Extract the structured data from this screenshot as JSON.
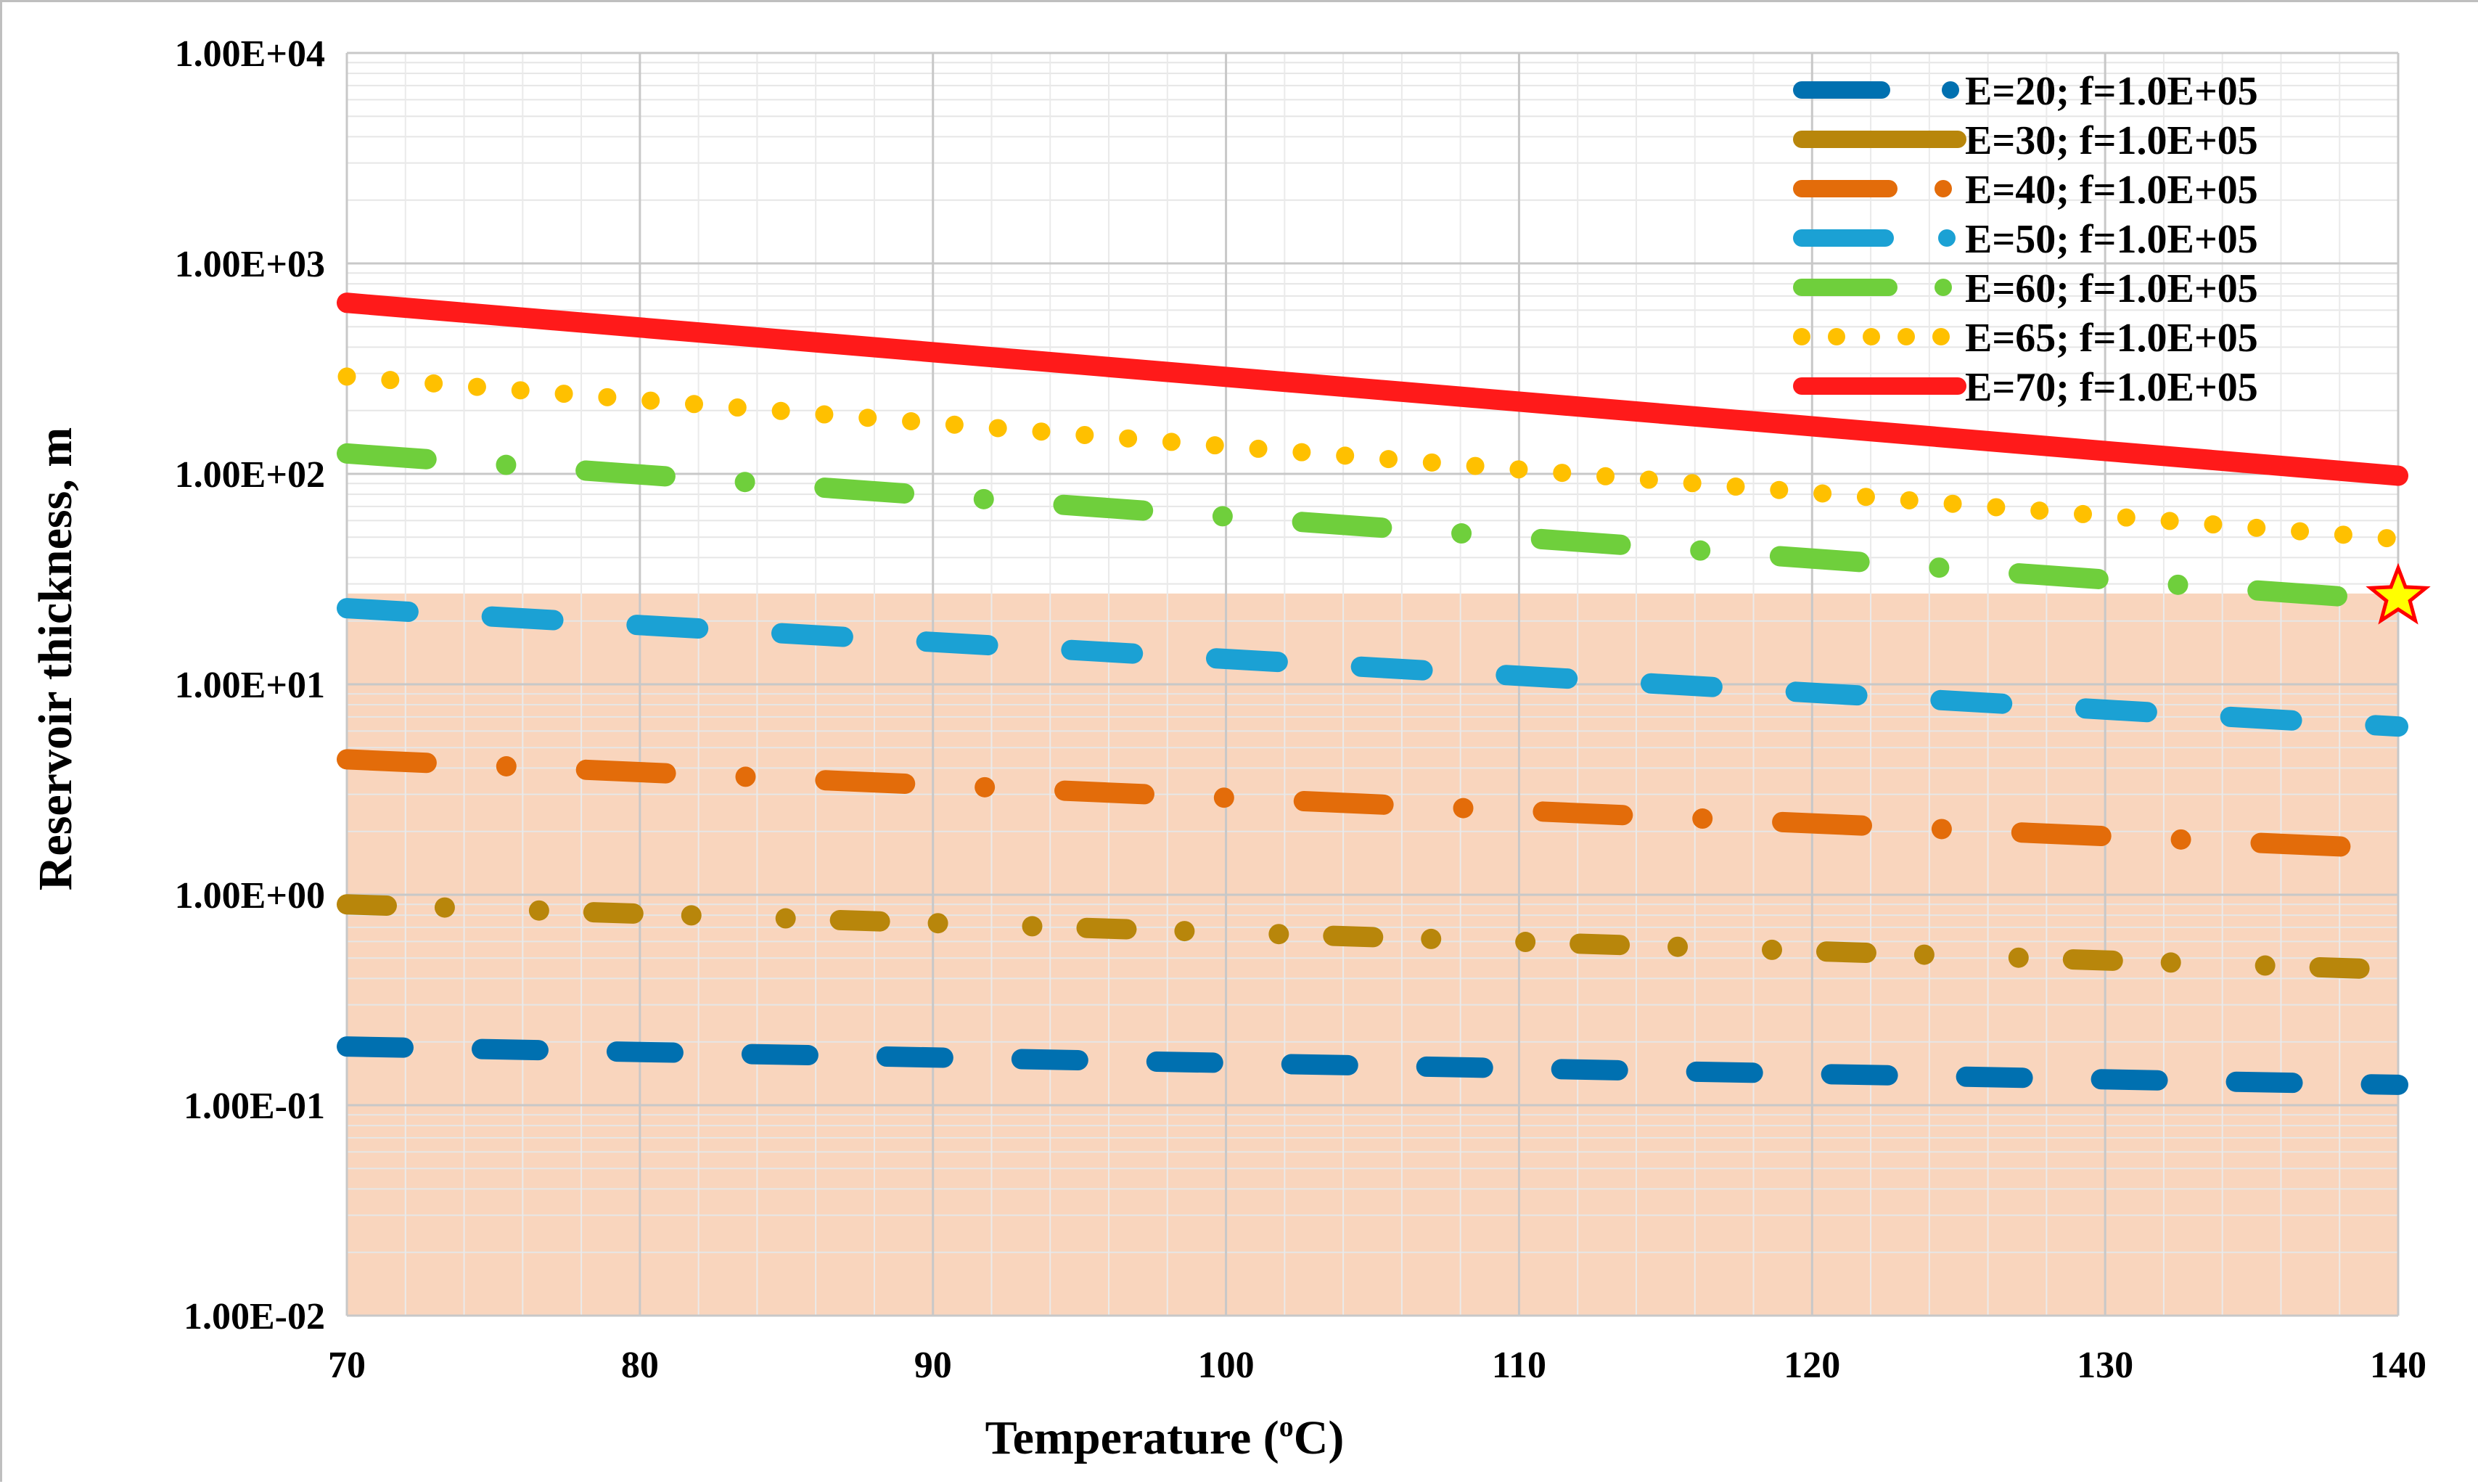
{
  "chart_data": {
    "type": "line",
    "title": "",
    "xlabel": "Temperature (°C)",
    "xlabel_main": "Temperature (",
    "xlabel_sup": "o",
    "xlabel_end": "C)",
    "ylabel": "Reservoir thickness, m",
    "yscale": "log",
    "xlim": [
      70,
      140
    ],
    "ylim": [
      0.01,
      10000
    ],
    "xticks": [
      70,
      80,
      90,
      100,
      110,
      120,
      130,
      140
    ],
    "xtick_labels": [
      "70",
      "80",
      "90",
      "100",
      "110",
      "120",
      "130",
      "140"
    ],
    "yticks": [
      0.01,
      0.1,
      1,
      10,
      100,
      1000,
      10000
    ],
    "ytick_labels": [
      "1.00E-02",
      "1.00E-01",
      "1.00E+00",
      "1.00E+01",
      "1.00E+02",
      "1.00E+03",
      "1.00E+04"
    ],
    "grid": true,
    "legend_position": "top-right",
    "shaded_region": {
      "x": [
        70,
        140
      ],
      "y": [
        0.01,
        27
      ],
      "color": "#f8cbad"
    },
    "marker": {
      "label": "star",
      "x": 140,
      "y": 26,
      "fill": "#ffff00",
      "stroke": "#ff0000"
    },
    "series": [
      {
        "name": "E=20; f=1.0E+05",
        "color": "#0070b0",
        "style": "long-dash",
        "x": [
          70,
          140
        ],
        "values": [
          0.19,
          0.125
        ]
      },
      {
        "name": "E=30; f=1.0E+05",
        "color": "#b8860b",
        "style": "dash-dot-dot",
        "x": [
          70,
          140
        ],
        "values": [
          0.9,
          0.44
        ]
      },
      {
        "name": "E=40; f=1.0E+05",
        "color": "#e36c0a",
        "style": "dash-dot",
        "x": [
          70,
          140
        ],
        "values": [
          4.4,
          1.65
        ]
      },
      {
        "name": "E=50; f=1.0E+05",
        "color": "#1ba1d4",
        "style": "dash",
        "x": [
          70,
          140
        ],
        "values": [
          23,
          6.3
        ]
      },
      {
        "name": "E=60; f=1.0E+05",
        "color": "#6fcf3c",
        "style": "dash-dot",
        "x": [
          70,
          140
        ],
        "values": [
          125,
          25
        ]
      },
      {
        "name": "E=65; f=1.0E+05",
        "color": "#ffc000",
        "style": "dotted",
        "x": [
          70,
          140
        ],
        "values": [
          290,
          49
        ]
      },
      {
        "name": "E=70; f=1.0E+05",
        "color": "#ff1a1a",
        "style": "solid",
        "x": [
          70,
          140
        ],
        "values": [
          650,
          98
        ]
      }
    ]
  }
}
